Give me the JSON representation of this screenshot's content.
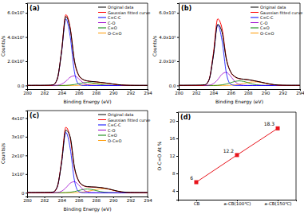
{
  "chart_data": [
    {
      "type": "line",
      "title": "(a)",
      "x_label": "Binding Energy (eV)",
      "y_label": "Counts/s",
      "legend": "upper right",
      "xlim": [
        280,
        294
      ],
      "xticks": [
        280,
        282,
        284,
        286,
        288,
        290,
        292,
        294
      ],
      "ylim": [
        -30000,
        680000
      ],
      "yticks": [
        {
          "value": 0,
          "label": "0.0"
        },
        {
          "value": 200000,
          "label": "2.0x10⁵"
        },
        {
          "value": 400000,
          "label": "4.0x10⁵"
        },
        {
          "value": 600000,
          "label": "6.0x10⁵"
        }
      ],
      "x": [
        280,
        280.5,
        281,
        281.5,
        282,
        282.5,
        283,
        283.5,
        284,
        284.5,
        285,
        285.5,
        286,
        286.5,
        287,
        287.5,
        288,
        288.5,
        289,
        289.5,
        290,
        290.5,
        291,
        291.5,
        292,
        292.5,
        293,
        293.5,
        294
      ],
      "series": [
        {
          "name": "Original data",
          "color": "#000000",
          "values": [
            1500,
            1200,
            1800,
            1400,
            2000,
            2500,
            5000,
            55000,
            280000,
            570000,
            470000,
            205000,
            85000,
            50000,
            38000,
            33000,
            30500,
            26000,
            22000,
            17000,
            12000,
            7500,
            4000,
            2200,
            1500,
            1200,
            1000,
            1300,
            900
          ]
        },
        {
          "name": "Gaussian fitted curve",
          "color": "#ff0000",
          "values": [
            0,
            0,
            0,
            0,
            0,
            0,
            3200,
            52000,
            284100,
            585100,
            478550,
            198400,
            82200,
            48300,
            36700,
            32900,
            29600,
            25400,
            21100,
            16300,
            11300,
            6600,
            3300,
            1400,
            500,
            150,
            0,
            0,
            0
          ]
        },
        {
          "name": "C=C-C",
          "color": "#0000ff",
          "values": [
            0,
            0,
            0,
            0,
            0,
            0,
            3000,
            50000,
            273000,
            549000,
            407000,
            111000,
            11000,
            400,
            0,
            0,
            0,
            0,
            0,
            0,
            0,
            0,
            0,
            0,
            0,
            0,
            0,
            0,
            0
          ]
        },
        {
          "name": "C-O",
          "color": "#9900cc",
          "values": [
            0,
            0,
            0,
            0,
            0,
            0,
            200,
            2000,
            10800,
            35000,
            68000,
            79000,
            55000,
            23000,
            5800,
            900,
            200,
            0,
            0,
            0,
            0,
            0,
            0,
            0,
            0,
            0,
            0,
            0,
            0
          ]
        },
        {
          "name": "C=O",
          "color": "#008000",
          "values": [
            0,
            0,
            0,
            0,
            0,
            0,
            0,
            0,
            300,
            1100,
            3400,
            8000,
            15000,
            22000,
            25000,
            22000,
            15000,
            8000,
            3400,
            1100,
            300,
            0,
            0,
            0,
            0,
            0,
            0,
            0,
            0
          ]
        },
        {
          "name": "O-C=O",
          "color": "#ff9900",
          "values": [
            0,
            0,
            0,
            0,
            0,
            0,
            0,
            0,
            0,
            0,
            150,
            400,
            1200,
            2900,
            5900,
            10000,
            14400,
            17400,
            17700,
            15200,
            11000,
            6600,
            3300,
            1400,
            500,
            150,
            0,
            0,
            0
          ]
        }
      ]
    },
    {
      "type": "line",
      "title": "(b)",
      "x_label": "Binding Energy (eV)",
      "y_label": "Counts/s",
      "legend": "upper right",
      "xlim": [
        280,
        294
      ],
      "xticks": [
        280,
        282,
        284,
        286,
        288,
        290,
        292,
        294
      ],
      "ylim": [
        -30000,
        680000
      ],
      "yticks": [
        {
          "value": 0,
          "label": "0.0"
        },
        {
          "value": 200000,
          "label": "2.0x10⁵"
        },
        {
          "value": 400000,
          "label": "4.0x10⁵"
        },
        {
          "value": 600000,
          "label": "6.0x10⁵"
        }
      ],
      "x": [
        280,
        280.5,
        281,
        281.5,
        282,
        282.5,
        283,
        283.5,
        284,
        284.5,
        285,
        285.5,
        286,
        286.5,
        287,
        287.5,
        288,
        288.5,
        289,
        289.5,
        290,
        290.5,
        291,
        291.5,
        292,
        292.5,
        293,
        293.5,
        294
      ],
      "series": [
        {
          "name": "Original data",
          "color": "#000000",
          "values": [
            2000,
            1800,
            2200,
            2500,
            2800,
            3500,
            6000,
            47000,
            245000,
            505000,
            440000,
            215000,
            112000,
            73000,
            57000,
            52000,
            48000,
            42000,
            35000,
            28000,
            20000,
            12500,
            7000,
            3800,
            2500,
            2000,
            1800,
            2100,
            1700
          ]
        },
        {
          "name": "Gaussian fitted curve",
          "color": "#ff0000",
          "values": [
            0,
            0,
            0,
            0,
            0,
            0,
            3000,
            48300,
            264100,
            549800,
            469750,
            222600,
            110400,
            70200,
            55800,
            51300,
            47100,
            41200,
            34700,
            27000,
            18800,
            11000,
            5500,
            2300,
            800,
            250,
            0,
            0,
            0
          ]
        },
        {
          "name": "C=C-C",
          "color": "#0000ff",
          "values": [
            0,
            0,
            0,
            0,
            0,
            0,
            2700,
            45500,
            248700,
            500000,
            370800,
            101100,
            10000,
            400,
            0,
            0,
            0,
            0,
            0,
            0,
            0,
            0,
            0,
            0,
            0,
            0,
            0,
            0,
            0
          ]
        },
        {
          "name": "C-O",
          "color": "#9900cc",
          "values": [
            0,
            0,
            0,
            0,
            0,
            0,
            300,
            2800,
            14900,
            48100,
            93500,
            108600,
            75600,
            31600,
            8000,
            1200,
            300,
            0,
            0,
            0,
            0,
            0,
            0,
            0,
            0,
            0,
            0,
            0,
            0
          ]
        },
        {
          "name": "C=O",
          "color": "#008000",
          "values": [
            0,
            0,
            0,
            0,
            0,
            0,
            0,
            0,
            500,
            1700,
            5200,
            12200,
            22800,
            33400,
            38000,
            33400,
            22800,
            12200,
            5200,
            1700,
            500,
            0,
            0,
            0,
            0,
            0,
            0,
            0,
            0
          ]
        },
        {
          "name": "O-C=O",
          "color": "#ff9900",
          "values": [
            0,
            0,
            0,
            0,
            0,
            0,
            0,
            0,
            0,
            0,
            250,
            700,
            2000,
            4800,
            9800,
            16700,
            24000,
            29000,
            29500,
            25300,
            18300,
            11000,
            5500,
            2300,
            800,
            250,
            0,
            0,
            0
          ]
        }
      ]
    },
    {
      "type": "line",
      "title": "(c)",
      "x_label": "Binding Energy (eV)",
      "y_label": "Counts/s",
      "legend": "upper right",
      "xlim": [
        280,
        294
      ],
      "xticks": [
        280,
        282,
        284,
        286,
        288,
        290,
        292,
        294
      ],
      "ylim": [
        -20000,
        440000
      ],
      "yticks": [
        0,
        {
          "value": 100000,
          "label": "1x10⁵"
        },
        {
          "value": 200000,
          "label": "2x10⁵"
        },
        {
          "value": 300000,
          "label": "3x10⁵"
        },
        {
          "value": 400000,
          "label": "4x10⁵"
        }
      ],
      "x": [
        280,
        280.5,
        281,
        281.5,
        282,
        282.5,
        283,
        283.5,
        284,
        284.5,
        285,
        285.5,
        286,
        286.5,
        287,
        287.5,
        288,
        288.5,
        289,
        289.5,
        290,
        290.5,
        291,
        291.5,
        292,
        292.5,
        293,
        293.5,
        294
      ],
      "series": [
        {
          "name": "Original data",
          "color": "#000000",
          "values": [
            1500,
            1300,
            1600,
            1800,
            2000,
            2400,
            4000,
            33000,
            160000,
            335000,
            300000,
            138000,
            64000,
            40000,
            33000,
            31500,
            30500,
            28500,
            25000,
            20500,
            14500,
            9000,
            5000,
            2800,
            1800,
            1500,
            1400,
            1600,
            1300
          ]
        },
        {
          "name": "Gaussian fitted curve",
          "color": "#ff0000",
          "values": [
            0,
            0,
            0,
            0,
            0,
            0,
            1950,
            31000,
            169140,
            350600,
            293580,
            131600,
            61300,
            38600,
            31600,
            30500,
            29750,
            27700,
            24300,
            19500,
            13640,
            8100,
            4000,
            1700,
            600,
            180,
            0,
            0,
            0
          ]
        },
        {
          "name": "C=C-C",
          "color": "#0000ff",
          "values": [
            0,
            0,
            0,
            0,
            0,
            0,
            1800,
            29500,
            160800,
            323400,
            239700,
            65400,
            6500,
            200,
            0,
            0,
            0,
            0,
            0,
            0,
            0,
            0,
            0,
            0,
            0,
            0,
            0,
            0,
            0
          ]
        },
        {
          "name": "C-O",
          "color": "#9900cc",
          "values": [
            0,
            0,
            0,
            0,
            0,
            0,
            150,
            1500,
            8100,
            26300,
            51000,
            59300,
            41300,
            17300,
            4400,
            700,
            150,
            0,
            0,
            0,
            0,
            0,
            0,
            0,
            0,
            0,
            0,
            0,
            0
          ]
        },
        {
          "name": "C=O",
          "color": "#008000",
          "values": [
            0,
            0,
            0,
            0,
            0,
            0,
            0,
            0,
            240,
            900,
            2700,
            6400,
            12000,
            17600,
            20000,
            17600,
            12000,
            6400,
            2700,
            900,
            240,
            0,
            0,
            0,
            0,
            0,
            0,
            0,
            0
          ]
        },
        {
          "name": "O-C=O",
          "color": "#ff9900",
          "values": [
            0,
            0,
            0,
            0,
            0,
            0,
            0,
            0,
            0,
            0,
            180,
            500,
            1500,
            3500,
            7200,
            12200,
            17600,
            21300,
            21600,
            18600,
            13400,
            8100,
            4000,
            1700,
            600,
            180,
            0,
            0,
            0
          ]
        }
      ]
    },
    {
      "type": "line",
      "title": "(d)",
      "y_label": "O-C=O At %",
      "marker": "square",
      "color": "#e8141c",
      "data_labels": true,
      "categories": [
        "CB",
        "a-CB(100℃)",
        "a-CB(150℃)"
      ],
      "values": [
        6,
        12.2,
        18.3
      ],
      "ylim": [
        2,
        22
      ],
      "yticks": [
        4,
        8,
        12,
        16,
        20
      ]
    }
  ]
}
